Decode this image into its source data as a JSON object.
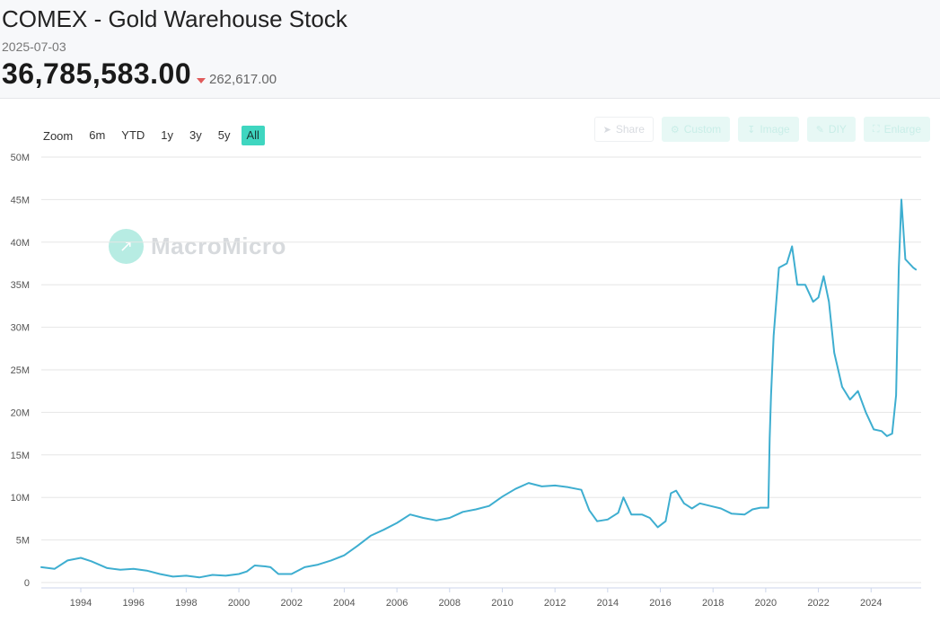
{
  "header": {
    "title": "COMEX - Gold Warehouse Stock",
    "date": "2025-07-03",
    "value": "36,785,583.00",
    "change": "262,617.00",
    "change_direction": "down",
    "change_color": "#e05a5a"
  },
  "zoom": {
    "label": "Zoom",
    "options": [
      "6m",
      "YTD",
      "1y",
      "3y",
      "5y",
      "All"
    ],
    "selected": "All"
  },
  "tools": [
    {
      "label": "Share",
      "icon": "share-icon"
    },
    {
      "label": "Custom",
      "icon": "gear-icon"
    },
    {
      "label": "Image",
      "icon": "download-icon"
    },
    {
      "label": "DIY",
      "icon": "pencil-icon"
    },
    {
      "label": "Enlarge",
      "icon": "expand-icon"
    }
  ],
  "watermark": "MacroMicro",
  "chart_data": {
    "type": "line",
    "title": "COMEX - Gold Warehouse Stock",
    "line_color": "#3eaed0",
    "accent_color": "#3fd6c0",
    "ylim": [
      0,
      50000000
    ],
    "y_ticks": [
      0,
      5000000,
      10000000,
      15000000,
      20000000,
      25000000,
      30000000,
      35000000,
      40000000,
      45000000,
      50000000
    ],
    "y_tick_labels": [
      "0",
      "5M",
      "10M",
      "15M",
      "20M",
      "25M",
      "30M",
      "35M",
      "40M",
      "45M",
      "50M"
    ],
    "xlim": [
      1992.5,
      2025.9
    ],
    "x_ticks": [
      1994,
      1996,
      1998,
      2000,
      2002,
      2004,
      2006,
      2008,
      2010,
      2012,
      2014,
      2016,
      2018,
      2020,
      2022,
      2024
    ],
    "grid": true,
    "series": [
      {
        "x": [
          1992.5,
          1993.0,
          1993.5,
          1994.0,
          1994.4,
          1995.0,
          1995.5,
          1996.0,
          1996.5,
          1997.0,
          1997.5,
          1998.0,
          1998.5,
          1999.0,
          1999.5,
          2000.0,
          2000.3,
          2000.6,
          2001.0,
          2001.2,
          2001.5,
          2002.0,
          2002.5,
          2003.0,
          2003.5,
          2004.0,
          2004.5,
          2005.0,
          2005.5,
          2006.0,
          2006.5,
          2007.0,
          2007.5,
          2008.0,
          2008.5,
          2009.0,
          2009.5,
          2010.0,
          2010.5,
          2011.0,
          2011.5,
          2012.0,
          2012.5,
          2013.0,
          2013.3,
          2013.6,
          2014.0,
          2014.4,
          2014.6,
          2014.9,
          2015.3,
          2015.6,
          2015.9,
          2016.2,
          2016.4,
          2016.6,
          2016.9,
          2017.2,
          2017.5,
          2017.9,
          2018.3,
          2018.7,
          2019.2,
          2019.5,
          2019.8,
          2020.1,
          2020.15,
          2020.2,
          2020.3,
          2020.5,
          2020.8,
          2021.0,
          2021.2,
          2021.5,
          2021.8,
          2022.0,
          2022.2,
          2022.4,
          2022.6,
          2022.9,
          2023.2,
          2023.5,
          2023.8,
          2024.1,
          2024.4,
          2024.6,
          2024.8,
          2024.95,
          2025.05,
          2025.15,
          2025.3,
          2025.45,
          2025.6,
          2025.7
        ],
        "y": [
          1800000,
          1600000,
          2600000,
          2900000,
          2500000,
          1700000,
          1500000,
          1600000,
          1400000,
          1000000,
          700000,
          800000,
          600000,
          900000,
          800000,
          1000000,
          1300000,
          2000000,
          1900000,
          1800000,
          1000000,
          1000000,
          1800000,
          2100000,
          2600000,
          3200000,
          4300000,
          5500000,
          6200000,
          7000000,
          8000000,
          7600000,
          7300000,
          7600000,
          8300000,
          8600000,
          9000000,
          10100000,
          11000000,
          11700000,
          11300000,
          11400000,
          11200000,
          10900000,
          8500000,
          7200000,
          7400000,
          8200000,
          10000000,
          8000000,
          8000000,
          7600000,
          6500000,
          7200000,
          10500000,
          10800000,
          9300000,
          8700000,
          9300000,
          9000000,
          8700000,
          8100000,
          8000000,
          8600000,
          8800000,
          8800000,
          17000000,
          22000000,
          29000000,
          37000000,
          37500000,
          39500000,
          35000000,
          35000000,
          33000000,
          33500000,
          36000000,
          33000000,
          27000000,
          23000000,
          21500000,
          22500000,
          20000000,
          18000000,
          17800000,
          17200000,
          17500000,
          22000000,
          37000000,
          45000000,
          38000000,
          37500000,
          37000000,
          36785583
        ]
      }
    ]
  }
}
